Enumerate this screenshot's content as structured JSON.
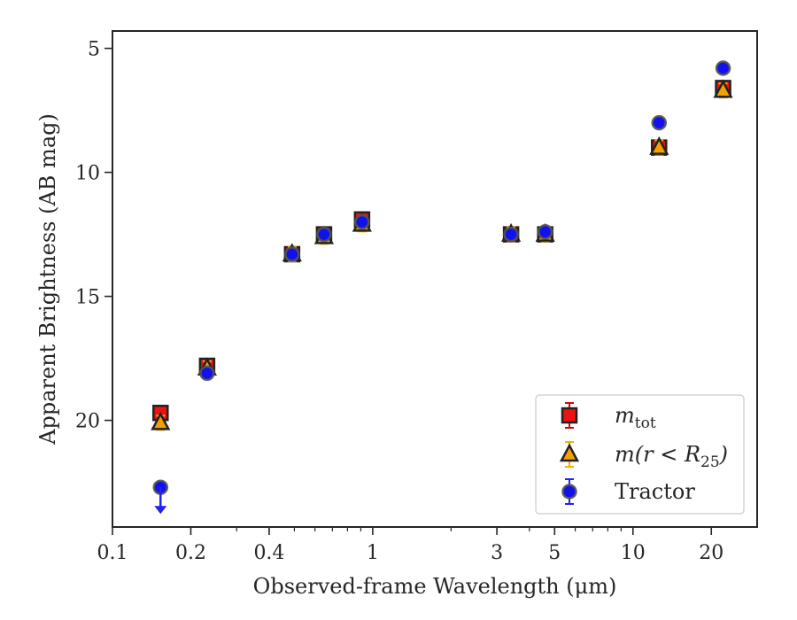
{
  "chart_data": {
    "type": "scatter",
    "xlabel": "Observed-frame Wavelength (μm)",
    "ylabel": "Apparent Brightness (AB mag)",
    "x_scale": "log",
    "y_inverted": true,
    "xlim": [
      0.1,
      30
    ],
    "ylim": [
      24.3,
      4.3
    ],
    "x_ticks": [
      {
        "value": 0.1,
        "label": "0.1"
      },
      {
        "value": 0.2,
        "label": "0.2"
      },
      {
        "value": 0.4,
        "label": "0.4"
      },
      {
        "value": 1,
        "label": "1"
      },
      {
        "value": 3,
        "label": "3"
      },
      {
        "value": 5,
        "label": "5"
      },
      {
        "value": 10,
        "label": "10"
      },
      {
        "value": 20,
        "label": "20"
      }
    ],
    "y_ticks": [
      {
        "value": 5,
        "label": "5"
      },
      {
        "value": 10,
        "label": "10"
      },
      {
        "value": 15,
        "label": "15"
      },
      {
        "value": 20,
        "label": "20"
      }
    ],
    "grid": false,
    "legend_position": "bottom-right",
    "series": [
      {
        "name": "m_tot",
        "marker": "square",
        "color": "#ee1111",
        "errbar_color": "#dd0000",
        "points": [
          {
            "x": 0.153,
            "y": 19.7
          },
          {
            "x": 0.231,
            "y": 17.8
          },
          {
            "x": 0.49,
            "y": 13.3
          },
          {
            "x": 0.65,
            "y": 12.5
          },
          {
            "x": 0.91,
            "y": 11.9
          },
          {
            "x": 3.4,
            "y": 12.5
          },
          {
            "x": 4.6,
            "y": 12.5
          },
          {
            "x": 12.6,
            "y": 9.0
          },
          {
            "x": 22.2,
            "y": 6.6
          }
        ]
      },
      {
        "name": "m(r < R25)",
        "marker": "triangle",
        "color": "#f5a000",
        "errbar_color": "#f5b000",
        "points": [
          {
            "x": 0.153,
            "y": 20.1
          },
          {
            "x": 0.231,
            "y": 17.9
          },
          {
            "x": 0.49,
            "y": 13.3
          },
          {
            "x": 0.65,
            "y": 12.6
          },
          {
            "x": 0.91,
            "y": 12.1
          },
          {
            "x": 3.4,
            "y": 12.5
          },
          {
            "x": 4.6,
            "y": 12.5
          },
          {
            "x": 12.6,
            "y": 9.0
          },
          {
            "x": 22.2,
            "y": 6.7
          }
        ]
      },
      {
        "name": "Tractor",
        "marker": "circle",
        "color": "#1111ee",
        "errbar_color": "#2222ee",
        "points": [
          {
            "x": 0.153,
            "y": 22.7,
            "upper_limit": true
          },
          {
            "x": 0.231,
            "y": 18.1
          },
          {
            "x": 0.49,
            "y": 13.3
          },
          {
            "x": 0.65,
            "y": 12.5
          },
          {
            "x": 0.91,
            "y": 12.0
          },
          {
            "x": 3.4,
            "y": 12.5
          },
          {
            "x": 4.6,
            "y": 12.4
          },
          {
            "x": 12.6,
            "y": 8.0
          },
          {
            "x": 22.2,
            "y": 5.8
          }
        ]
      }
    ]
  }
}
